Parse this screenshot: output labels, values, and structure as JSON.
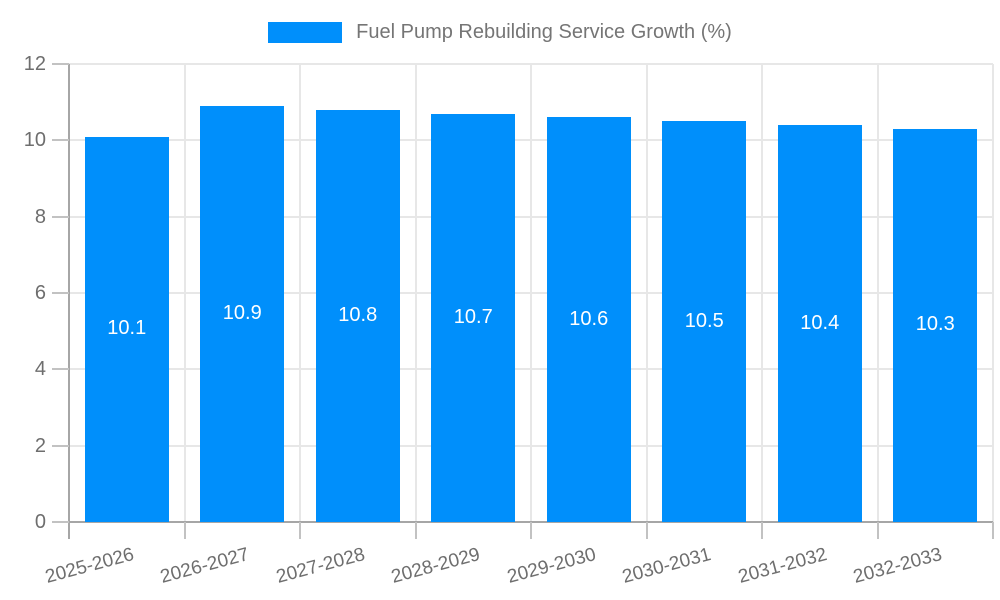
{
  "legend": {
    "label": "Fuel Pump Rebuilding Service Growth (%)"
  },
  "chart_data": {
    "type": "bar",
    "title": "Fuel Pump Rebuilding Service Growth (%)",
    "categories": [
      "2025-2026",
      "2026-2027",
      "2027-2028",
      "2028-2029",
      "2029-2030",
      "2030-2031",
      "2031-2032",
      "2032-2033"
    ],
    "series": [
      {
        "name": "Fuel Pump Rebuilding Service Growth (%)",
        "values": [
          10.1,
          10.9,
          10.8,
          10.7,
          10.6,
          10.5,
          10.4,
          10.3
        ]
      }
    ],
    "value_labels": [
      "10.1",
      "10.9",
      "10.8",
      "10.7",
      "10.6",
      "10.5",
      "10.4",
      "10.3"
    ],
    "xlabel": "",
    "ylabel": "",
    "ylim": [
      0,
      12
    ],
    "yticks": [
      0,
      2,
      4,
      6,
      8,
      10,
      12
    ],
    "grid": true,
    "legend_position": "top-center",
    "x_label_rotation_deg": -15,
    "colors": {
      "bar": "#008FFB",
      "value_label": "#FFFFFF",
      "grid_line": "#E7E7E7",
      "axis_line": "#A6A6A6",
      "tick": "#C2C2C2",
      "axis_text": "#6E6E6E",
      "legend_text": "#757575",
      "background": "#FFFFFF"
    }
  }
}
